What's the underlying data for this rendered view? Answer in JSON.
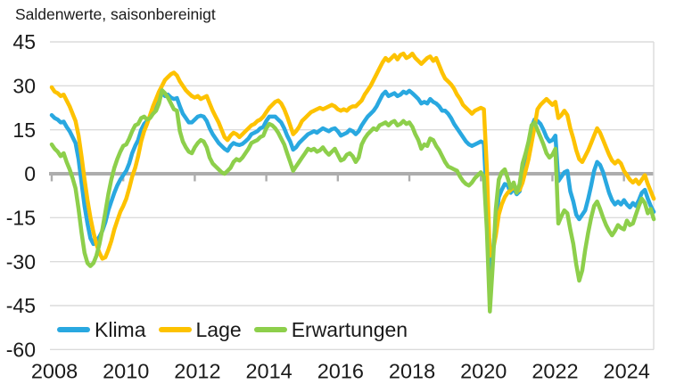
{
  "title": "Saldenwerte, saisonbereinigt",
  "colors": {
    "background": "#ffffff",
    "grid": "#dbdbdb",
    "zero_line": "#adadad",
    "text": "#1a1a1a",
    "klima": "#29a8e0",
    "lage": "#fdc200",
    "erwartungen": "#8dcf4b"
  },
  "y_axis": {
    "ticks": [
      45,
      30,
      15,
      0,
      -15,
      -30,
      -45,
      -60
    ]
  },
  "x_axis": {
    "ticks": [
      2008,
      2010,
      2012,
      2014,
      2016,
      2018,
      2020,
      2022,
      2024
    ]
  },
  "legend": {
    "items": [
      {
        "label": "Klima",
        "color": "#29a8e0"
      },
      {
        "label": "Lage",
        "color": "#fdc200"
      },
      {
        "label": "Erwartungen",
        "color": "#8dcf4b"
      }
    ]
  },
  "chart_data": {
    "type": "line",
    "title": "Saldenwerte, saisonbereinigt",
    "x_start": "2008-01",
    "x_end": "2024-11",
    "x_step": "month",
    "ylim": [
      -60,
      45
    ],
    "grid": "horizontal",
    "legend_position": "bottom-left",
    "series": [
      {
        "name": "Klima",
        "color": "#29a8e0",
        "values": [
          20,
          19,
          18.5,
          17.5,
          17.8,
          16,
          14.5,
          12.5,
          10.5,
          5,
          -3,
          -11,
          -17,
          -22,
          -24,
          -23,
          -21.5,
          -19.5,
          -16.5,
          -12.5,
          -9.5,
          -6.5,
          -4,
          -2,
          -0.5,
          1,
          3.5,
          7,
          9.5,
          11.5,
          15,
          17,
          18,
          19.5,
          21.5,
          23.5,
          25.5,
          27.5,
          26.5,
          27,
          26,
          25.5,
          25.8,
          23,
          20.5,
          19,
          17.5,
          17.5,
          18.5,
          19.5,
          19.8,
          19.5,
          18,
          15.5,
          13.5,
          12,
          10.5,
          9.5,
          8.5,
          7.8,
          9.5,
          10.5,
          10,
          9.8,
          10.2,
          11,
          12,
          13.5,
          14,
          14.5,
          15.5,
          16,
          18,
          19.5,
          19.5,
          19.5,
          18.5,
          17.5,
          15.5,
          13,
          11,
          8.2,
          9,
          10.5,
          11.5,
          12.5,
          13.5,
          14,
          14.5,
          14,
          14.8,
          15.5,
          15,
          14.5,
          15.2,
          15.5,
          14.5,
          13,
          13.5,
          14,
          15,
          14.5,
          13.5,
          14.5,
          16.5,
          18,
          19.5,
          20.5,
          21.5,
          23,
          25,
          27,
          28,
          26.5,
          27,
          27.5,
          26.5,
          27,
          28,
          27.5,
          28.3,
          27.5,
          26.5,
          25.5,
          24,
          24.5,
          24,
          25.5,
          24.5,
          24,
          23,
          21.5,
          21.5,
          20.5,
          19,
          17,
          15.5,
          14,
          12.5,
          11,
          10,
          9.5,
          10,
          10.5,
          11,
          10.5,
          -10,
          -35,
          -27,
          -16,
          -8,
          -5.5,
          -3.5,
          -4,
          -6.5,
          -5,
          -7,
          -6,
          0,
          4,
          8,
          16,
          18.5,
          18,
          17,
          15,
          12.5,
          11,
          11.5,
          13,
          -2.5,
          -1,
          0.5,
          1,
          -6,
          -9.5,
          -14,
          -15.5,
          -14,
          -12.5,
          -8.5,
          -4,
          1,
          4,
          3,
          0.5,
          -3,
          -6.5,
          -9,
          -10.5,
          -9.5,
          -10.5,
          -9,
          -10.5,
          -11.5,
          -10,
          -11,
          -9,
          -6.5,
          -5.5,
          -8.5,
          -11,
          -13
        ]
      },
      {
        "name": "Lage",
        "color": "#fdc200",
        "values": [
          29.5,
          28,
          27.5,
          26.5,
          27,
          25,
          23,
          20.5,
          18,
          13,
          6,
          -2,
          -9,
          -15,
          -20,
          -24,
          -27,
          -29,
          -28.5,
          -26,
          -23,
          -19,
          -16,
          -13,
          -11,
          -8.5,
          -5,
          -1,
          2,
          6,
          11,
          14.5,
          17,
          20,
          23,
          25.5,
          28,
          30,
          32,
          33,
          34,
          34.5,
          33.5,
          31.5,
          30,
          28.5,
          27.5,
          26.5,
          26,
          26.5,
          25.5,
          26,
          26.5,
          24,
          21.5,
          19.5,
          17.5,
          15,
          12.5,
          11.5,
          13,
          14,
          13.5,
          12.5,
          13.5,
          14.5,
          15.5,
          16.5,
          17,
          18,
          18.5,
          19.5,
          21,
          22.5,
          23.5,
          24.5,
          25,
          24,
          22,
          19.5,
          16.5,
          13.5,
          14.5,
          16,
          18,
          19,
          20,
          21,
          21.5,
          22,
          22.5,
          22,
          22.5,
          23,
          23.5,
          23,
          22,
          21.5,
          22,
          21.5,
          22.5,
          23,
          23,
          24,
          25,
          27,
          28.5,
          30,
          32,
          34,
          36,
          38,
          39.5,
          38.5,
          39.5,
          40.5,
          39,
          40.5,
          41,
          39.5,
          40,
          41,
          39.5,
          38.5,
          37.5,
          38.5,
          39.5,
          40,
          38.5,
          39.5,
          37,
          34.5,
          32.5,
          31.5,
          30.5,
          29,
          27,
          25.5,
          23.5,
          22.5,
          21.5,
          20.5,
          21.5,
          22,
          22.5,
          22,
          2,
          -28,
          -26.5,
          -21,
          -14,
          -10.5,
          -8,
          -6.5,
          -5.5,
          -4.5,
          -6,
          -5.5,
          -3,
          1,
          5,
          10.5,
          16,
          22,
          23.5,
          24.5,
          25.5,
          24.5,
          23.5,
          24.5,
          19,
          20,
          21.5,
          20,
          15.5,
          12,
          8,
          5,
          4,
          6,
          8,
          10.5,
          13,
          15.5,
          14,
          11.5,
          9,
          6.5,
          4.5,
          3.5,
          4.5,
          3.5,
          1,
          -0.5,
          -2,
          -3,
          -2,
          -3.5,
          -2,
          -0.5,
          -3.5,
          -6,
          -8.5
        ]
      },
      {
        "name": "Erwartungen",
        "color": "#8dcf4b",
        "values": [
          10,
          8.5,
          7.5,
          6,
          7,
          4,
          1.5,
          -1.5,
          -5,
          -12,
          -20,
          -27,
          -30.5,
          -31.5,
          -30.5,
          -28,
          -24,
          -19,
          -13,
          -7,
          -2,
          2,
          5,
          7.5,
          9.5,
          10,
          12,
          14.5,
          16.5,
          17,
          19,
          19.5,
          18.5,
          19,
          20.5,
          21.5,
          24,
          28.5,
          27.5,
          26,
          24,
          22,
          21.5,
          14.5,
          11,
          9,
          7.5,
          7,
          9,
          10.5,
          11.5,
          11,
          9,
          5.5,
          3.5,
          2.5,
          1.5,
          0.5,
          0,
          1,
          2,
          4,
          5,
          4.5,
          5.5,
          7,
          8.5,
          10.5,
          11,
          11.5,
          12.5,
          13,
          15.5,
          17,
          16.5,
          15.5,
          14,
          12,
          10,
          7,
          4,
          1,
          2.5,
          4,
          5.5,
          7,
          8.5,
          8,
          8.5,
          7.5,
          8,
          9,
          7.5,
          6.5,
          7.5,
          8.5,
          6.5,
          4.5,
          5,
          6.5,
          7,
          6,
          4,
          5.5,
          10,
          12,
          13.5,
          14.5,
          15.5,
          15,
          16.5,
          17,
          17.5,
          16.5,
          17.5,
          18,
          16.5,
          17,
          18,
          17,
          17.5,
          16,
          13.5,
          11.5,
          8.5,
          10,
          9.5,
          12,
          11.5,
          9.5,
          8,
          6,
          4,
          2.5,
          2,
          1.5,
          1,
          -1,
          -2.5,
          -3.5,
          -4,
          -3,
          -1.5,
          -0.5,
          0.5,
          -1,
          -19,
          -47,
          -31,
          -12,
          -2,
          0.5,
          1.5,
          -1.5,
          -5,
          -3,
          -6.5,
          -3.5,
          3.5,
          7,
          11,
          16.5,
          17.5,
          15,
          12.5,
          10,
          7,
          5.5,
          6.5,
          8.5,
          -17,
          -14.5,
          -12.5,
          -13.5,
          -19,
          -24,
          -31,
          -36.5,
          -33,
          -26,
          -20,
          -15,
          -11,
          -9.5,
          -12,
          -15,
          -17.5,
          -19.5,
          -21,
          -19.5,
          -17.5,
          -18.5,
          -19,
          -16,
          -17.5,
          -17,
          -14,
          -11,
          -8.5,
          -10,
          -13.5,
          -12,
          -15.5
        ]
      }
    ]
  }
}
